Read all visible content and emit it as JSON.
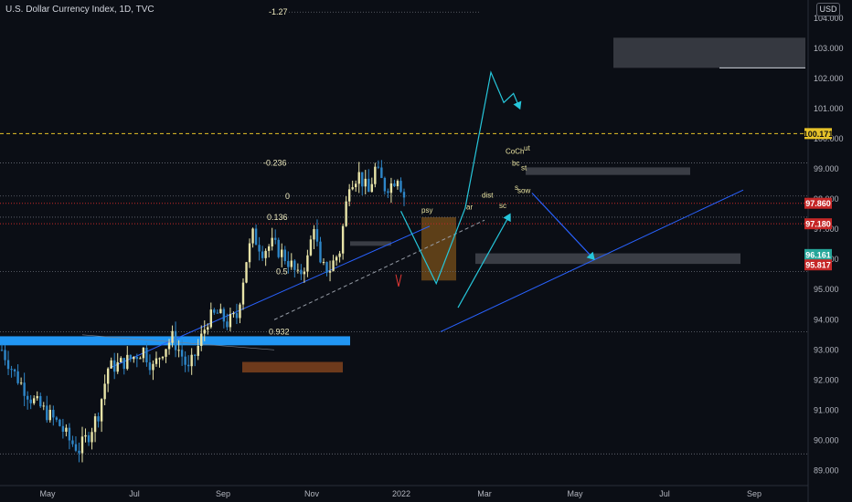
{
  "header": {
    "title": "U.S. Dollar Currency Index, 1D, TVC",
    "currency": "USD"
  },
  "colors": {
    "background": "#0b0e15",
    "up_candle": "#e8e4a8",
    "down_candle": "#2e86c8",
    "trendline": "#2962ff",
    "projection": "#26c6da",
    "dashed_level": "#e6c229",
    "red_level": "#c62828",
    "support_zone": "#2196f3",
    "resistance_zone": "#6d3a1c",
    "gray_zone": "#3a3d45"
  },
  "chart_data": {
    "type": "candlestick",
    "title": "U.S. Dollar Currency Index, 1D, TVC",
    "xlabel": "",
    "ylabel": "",
    "ylim": [
      88.5,
      104.6
    ],
    "x_ticks": [
      "May",
      "Jul",
      "Sep",
      "Nov",
      "2022",
      "Mar",
      "May",
      "Jul",
      "Sep"
    ],
    "y_ticks": [
      89.0,
      90.0,
      91.0,
      92.0,
      93.0,
      94.0,
      95.0,
      96.0,
      97.0,
      98.0,
      99.0,
      100.0,
      101.0,
      102.0,
      103.0,
      104.0
    ],
    "close_path": [
      [
        0,
        93.0
      ],
      [
        4,
        92.2
      ],
      [
        9,
        91.4
      ],
      [
        14,
        90.9
      ],
      [
        18,
        90.5
      ],
      [
        21,
        90.0
      ],
      [
        24,
        89.7
      ],
      [
        27,
        90.2
      ],
      [
        30,
        90.9
      ],
      [
        33,
        92.4
      ],
      [
        36,
        92.5
      ],
      [
        40,
        92.7
      ],
      [
        44,
        93.0
      ],
      [
        47,
        92.4
      ],
      [
        50,
        93.0
      ],
      [
        53,
        93.4
      ],
      [
        56,
        92.8
      ],
      [
        58,
        92.3
      ],
      [
        61,
        93.1
      ],
      [
        64,
        94.0
      ],
      [
        67,
        94.2
      ],
      [
        70,
        93.9
      ],
      [
        73,
        94.1
      ],
      [
        76,
        96.0
      ],
      [
        78,
        96.8
      ],
      [
        81,
        96.3
      ],
      [
        84,
        96.5
      ],
      [
        87,
        96.2
      ],
      [
        90,
        95.8
      ],
      [
        92,
        95.4
      ],
      [
        95,
        96.0
      ],
      [
        97,
        97.2
      ],
      [
        99,
        95.7
      ],
      [
        102,
        95.7
      ],
      [
        105,
        96.3
      ],
      [
        108,
        98.6
      ],
      [
        111,
        98.8
      ],
      [
        114,
        98.2
      ],
      [
        116,
        99.0
      ],
      [
        119,
        98.4
      ],
      [
        121,
        98.5
      ],
      [
        123,
        98.8
      ],
      [
        125,
        98.1
      ]
    ],
    "last_index": 125,
    "levels": [
      {
        "label": "100.171",
        "value": 100.171,
        "style": "dashed",
        "color": "#e6c229"
      },
      {
        "label": "97.860",
        "value": 97.86,
        "style": "dotted",
        "color": "#c62828"
      },
      {
        "label": "97.180",
        "value": 97.18,
        "style": "dotted",
        "color": "#c62828"
      },
      {
        "label": "96.161",
        "value": 96.161,
        "style": "badge",
        "color": "#26a69a"
      },
      {
        "label": "95.817",
        "value": 95.817,
        "style": "badge",
        "color": "#c62828"
      }
    ],
    "fib_levels": [
      {
        "label": "-1.27",
        "value": 104.2
      },
      {
        "label": "-0.236",
        "value": 99.2
      },
      {
        "label": "0",
        "value": 98.1
      },
      {
        "label": "0.136",
        "value": 97.4
      },
      {
        "label": "0.5",
        "value": 95.6
      },
      {
        "label": "0.932",
        "value": 93.6
      }
    ],
    "annotations": [
      "CoCh",
      "ut",
      "bc",
      "sow",
      "psy",
      "ar",
      "dist",
      "sc",
      "st",
      "s"
    ],
    "projection_path": [
      [
        124,
        97.6
      ],
      [
        135,
        95.2
      ],
      [
        144,
        97.7
      ],
      [
        152,
        102.2
      ],
      [
        156,
        101.2
      ],
      [
        159,
        101.5
      ],
      [
        161,
        101.0
      ]
    ]
  }
}
